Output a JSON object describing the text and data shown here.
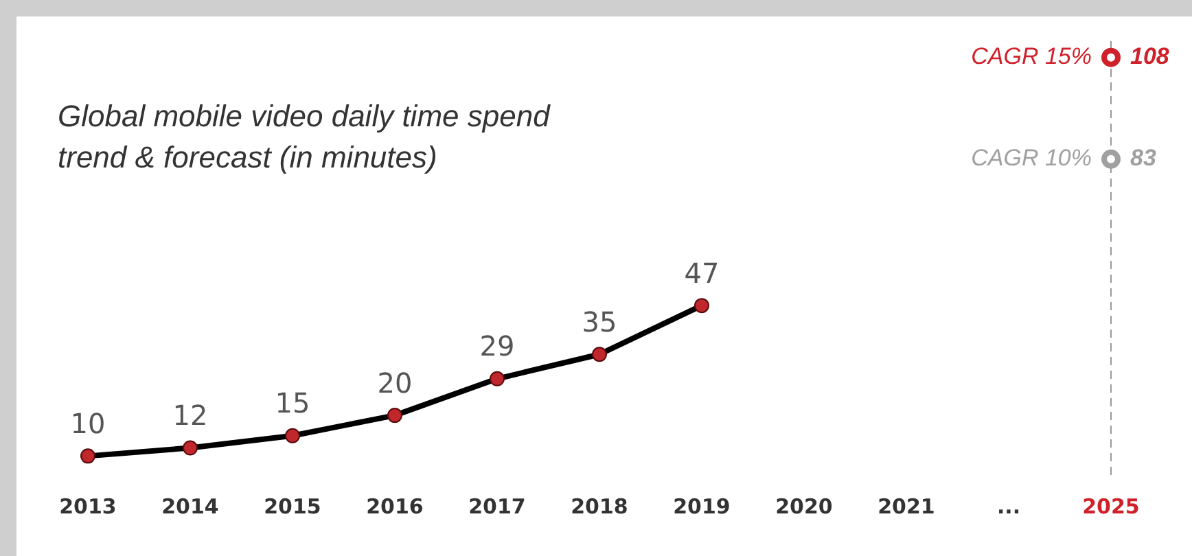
{
  "chart_data": {
    "type": "line",
    "title": "Global mobile video daily time spend trend & forecast (in minutes)",
    "categories": [
      "2013",
      "2014",
      "2015",
      "2016",
      "2017",
      "2018",
      "2019",
      "2020",
      "2021",
      "...",
      "2025"
    ],
    "series": [
      {
        "color": "#000000",
        "values": [
          10,
          12,
          15,
          20,
          29,
          35,
          47,
          null,
          null,
          null,
          null
        ]
      },
      {
        "type": "scatter",
        "name": "CAGR 15%",
        "color": "#d0202a",
        "values": [
          null,
          null,
          null,
          null,
          null,
          null,
          null,
          null,
          null,
          null,
          108
        ]
      },
      {
        "type": "scatter",
        "name": "CAGR 10%",
        "color": "#a0a0a0",
        "values": [
          null,
          null,
          null,
          null,
          null,
          null,
          null,
          null,
          null,
          null,
          83
        ]
      }
    ],
    "ylim": [
      5,
      112
    ],
    "tick_labels": "x",
    "ref_lines": [
      {
        "axis": "x",
        "value": "2025",
        "color": "#999999",
        "line_style": "dashed"
      }
    ],
    "data_labels": true,
    "grid": false,
    "legend": false,
    "marker": "circle",
    "line_style": "solid"
  }
}
